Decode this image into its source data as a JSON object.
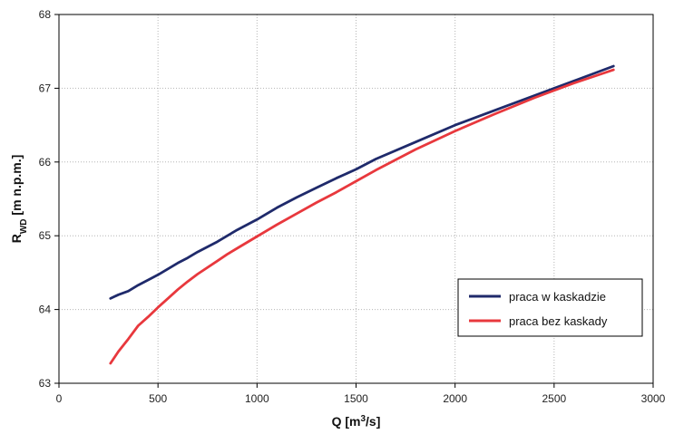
{
  "chart_data": {
    "type": "line",
    "title": "",
    "xlabel": {
      "main": "Q [m",
      "sup": "3",
      "tail": "/s]"
    },
    "ylabel": {
      "main": "R",
      "sub": "WD",
      "tail": " [m n.p.m.]"
    },
    "xlim": [
      0,
      3000
    ],
    "ylim": [
      63,
      68
    ],
    "xticks": [
      "0",
      "500",
      "1000",
      "1500",
      "2000",
      "2500",
      "3000"
    ],
    "yticks": [
      "63",
      "64",
      "65",
      "66",
      "67",
      "68"
    ],
    "grid": "dotted",
    "legend_position": "bottom-right",
    "series": [
      {
        "name": "praca w kaskadzie",
        "color": "#1f2a6b",
        "x": [
          260,
          300,
          350,
          400,
          450,
          500,
          550,
          600,
          650,
          700,
          800,
          850,
          900,
          1000,
          1100,
          1200,
          1300,
          1400,
          1500,
          1600,
          1800,
          2000,
          2200,
          2400,
          2600,
          2800
        ],
        "y": [
          64.15,
          64.2,
          64.25,
          64.33,
          64.4,
          64.47,
          64.55,
          64.63,
          64.7,
          64.78,
          64.92,
          65.0,
          65.08,
          65.22,
          65.38,
          65.52,
          65.65,
          65.78,
          65.9,
          66.04,
          66.27,
          66.5,
          66.7,
          66.9,
          67.1,
          67.3
        ]
      },
      {
        "name": "praca bez kaskady",
        "color": "#e8383d",
        "x": [
          260,
          300,
          350,
          400,
          450,
          500,
          550,
          600,
          650,
          700,
          800,
          850,
          900,
          1000,
          1100,
          1200,
          1300,
          1400,
          1500,
          1600,
          1800,
          2000,
          2200,
          2400,
          2600,
          2800
        ],
        "y": [
          63.27,
          63.43,
          63.6,
          63.78,
          63.9,
          64.03,
          64.15,
          64.27,
          64.38,
          64.48,
          64.66,
          64.75,
          64.83,
          64.99,
          65.15,
          65.3,
          65.45,
          65.59,
          65.74,
          65.89,
          66.17,
          66.42,
          66.65,
          66.87,
          67.07,
          67.25
        ]
      }
    ]
  }
}
